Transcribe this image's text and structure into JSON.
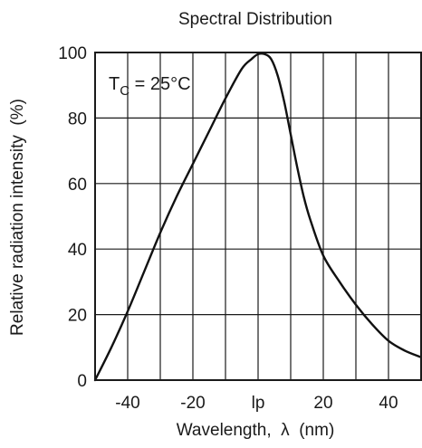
{
  "chart_data": {
    "type": "line",
    "title": "Spectral Distribution",
    "xlabel": "Wavelength,  λ  (nm)",
    "ylabel": "Relative radiation intensity  (%)",
    "xlim": [
      -50,
      50
    ],
    "ylim": [
      0,
      100
    ],
    "x_ticks": [
      {
        "value": -40,
        "label": "-40"
      },
      {
        "value": -20,
        "label": "-20"
      },
      {
        "value": 0,
        "label": "lp"
      },
      {
        "value": 20,
        "label": "20"
      },
      {
        "value": 40,
        "label": "40"
      }
    ],
    "y_ticks": [
      {
        "value": 0,
        "label": "0"
      },
      {
        "value": 20,
        "label": "20"
      },
      {
        "value": 40,
        "label": "40"
      },
      {
        "value": 60,
        "label": "60"
      },
      {
        "value": 80,
        "label": "80"
      },
      {
        "value": 100,
        "label": "100"
      }
    ],
    "x_grid": [
      -40,
      -30,
      -20,
      -10,
      0,
      10,
      20,
      30,
      40
    ],
    "y_grid": [
      20,
      40,
      60,
      80
    ],
    "grid": true,
    "annotation": {
      "base": "T",
      "subscript": "C",
      "rest": " = 25°C",
      "placement": "top-left"
    },
    "series": [
      {
        "values": [
          {
            "x": -50,
            "y": 0
          },
          {
            "x": -45,
            "y": 10
          },
          {
            "x": -40,
            "y": 21
          },
          {
            "x": -35,
            "y": 33
          },
          {
            "x": -30,
            "y": 45
          },
          {
            "x": -25,
            "y": 56
          },
          {
            "x": -20,
            "y": 66
          },
          {
            "x": -15,
            "y": 76
          },
          {
            "x": -10,
            "y": 86
          },
          {
            "x": -5,
            "y": 95
          },
          {
            "x": -2,
            "y": 98
          },
          {
            "x": 0,
            "y": 99.5
          },
          {
            "x": 2,
            "y": 99.5
          },
          {
            "x": 4,
            "y": 98
          },
          {
            "x": 6,
            "y": 93
          },
          {
            "x": 8,
            "y": 85
          },
          {
            "x": 10,
            "y": 75
          },
          {
            "x": 12,
            "y": 65
          },
          {
            "x": 14,
            "y": 56
          },
          {
            "x": 16,
            "y": 49
          },
          {
            "x": 20,
            "y": 38
          },
          {
            "x": 25,
            "y": 30
          },
          {
            "x": 30,
            "y": 23
          },
          {
            "x": 35,
            "y": 17
          },
          {
            "x": 40,
            "y": 12
          },
          {
            "x": 45,
            "y": 9
          },
          {
            "x": 50,
            "y": 7
          }
        ]
      }
    ]
  }
}
